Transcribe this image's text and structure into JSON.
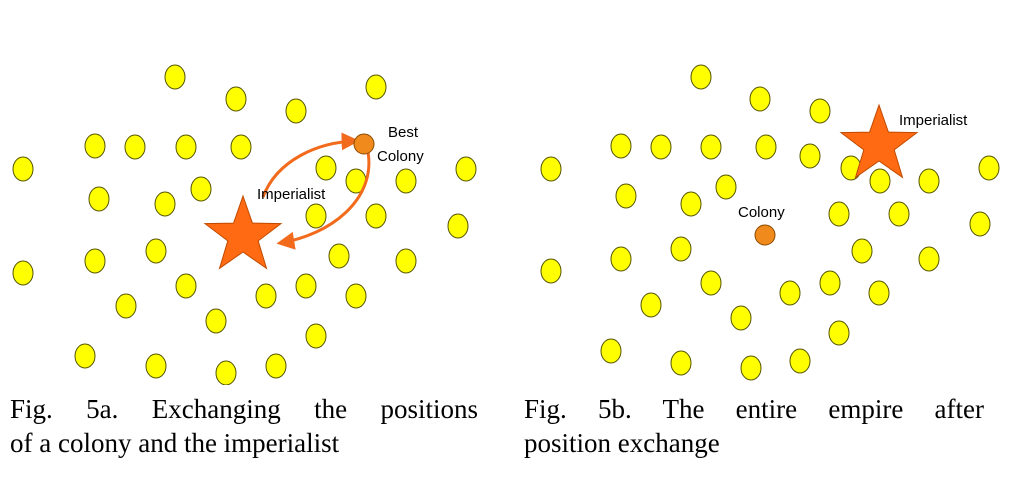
{
  "colors": {
    "country": "#FFFF00",
    "country_outline": "#555500",
    "colony": "#F08A1C",
    "imperialist": "#FF6A13",
    "arrow": "#F26A1B"
  },
  "panel_a": {
    "best_colony_label": [
      "Best",
      "Colony"
    ],
    "imperialist_label": "Imperialist",
    "caption_lines": [
      "Fig. 5a. Exchanging the positions",
      "of a colony and the imperialist"
    ]
  },
  "panel_b": {
    "colony_label": "Colony",
    "imperialist_label": "Imperialist",
    "caption_lines": [
      "Fig. 5b. The entire empire after",
      "position exchange"
    ]
  }
}
